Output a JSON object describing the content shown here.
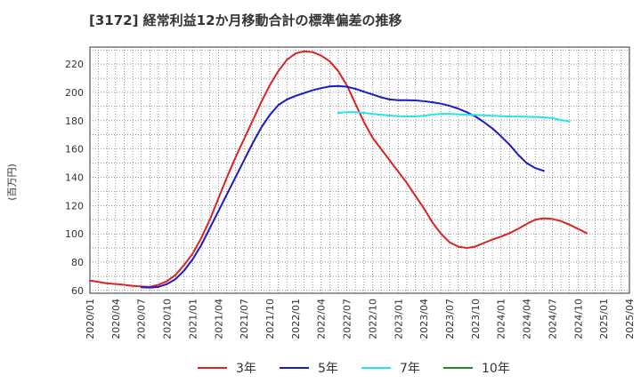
{
  "chart_data": {
    "type": "line",
    "title": "[3172]  経常利益12か月移動合計の標準偏差の推移",
    "ylabel": "(百万円)",
    "xlabel": "",
    "ylim": [
      58,
      232
    ],
    "yticks": [
      60,
      80,
      100,
      120,
      140,
      160,
      180,
      200,
      220
    ],
    "xlim": [
      "2020/01",
      "2025/04"
    ],
    "xticks": [
      "2020/01",
      "2020/04",
      "2020/07",
      "2020/10",
      "2021/01",
      "2021/04",
      "2021/07",
      "2021/10",
      "2022/01",
      "2022/04",
      "2022/07",
      "2022/10",
      "2023/01",
      "2023/04",
      "2023/07",
      "2023/10",
      "2024/01",
      "2024/04",
      "2024/07",
      "2024/10",
      "2025/01",
      "2025/04"
    ],
    "grid": true,
    "legend_position": "bottom",
    "series": [
      {
        "name": "3年",
        "color": "#dd2222",
        "points": [
          [
            "2020/01",
            67
          ],
          [
            "2020/02",
            66
          ],
          [
            "2020/03",
            65
          ],
          [
            "2020/04",
            64.5
          ],
          [
            "2020/05",
            64
          ],
          [
            "2020/06",
            63.2
          ],
          [
            "2020/07",
            62.8
          ],
          [
            "2020/08",
            62.5
          ],
          [
            "2020/09",
            64
          ],
          [
            "2020/10",
            66.5
          ],
          [
            "2020/11",
            71
          ],
          [
            "2020/12",
            78
          ],
          [
            "2021/01",
            86
          ],
          [
            "2021/02",
            97
          ],
          [
            "2021/03",
            110
          ],
          [
            "2021/04",
            125
          ],
          [
            "2021/05",
            140
          ],
          [
            "2021/06",
            154
          ],
          [
            "2021/07",
            167
          ],
          [
            "2021/08",
            180
          ],
          [
            "2021/09",
            193
          ],
          [
            "2021/10",
            205
          ],
          [
            "2021/11",
            215
          ],
          [
            "2021/12",
            223
          ],
          [
            "2022/01",
            227.5
          ],
          [
            "2022/02",
            229
          ],
          [
            "2022/03",
            228.5
          ],
          [
            "2022/04",
            226
          ],
          [
            "2022/05",
            222
          ],
          [
            "2022/06",
            215
          ],
          [
            "2022/07",
            205
          ],
          [
            "2022/08",
            192
          ],
          [
            "2022/09",
            179
          ],
          [
            "2022/10",
            168
          ],
          [
            "2022/11",
            160
          ],
          [
            "2022/12",
            152
          ],
          [
            "2023/01",
            144
          ],
          [
            "2023/02",
            136
          ],
          [
            "2023/03",
            127
          ],
          [
            "2023/04",
            118
          ],
          [
            "2023/05",
            108
          ],
          [
            "2023/06",
            100
          ],
          [
            "2023/07",
            94
          ],
          [
            "2023/08",
            91
          ],
          [
            "2023/09",
            90
          ],
          [
            "2023/10",
            91
          ],
          [
            "2023/11",
            93.5
          ],
          [
            "2023/12",
            96
          ],
          [
            "2024/01",
            98
          ],
          [
            "2024/02",
            100.5
          ],
          [
            "2024/03",
            103.5
          ],
          [
            "2024/04",
            107
          ],
          [
            "2024/05",
            110
          ],
          [
            "2024/06",
            111
          ],
          [
            "2024/07",
            110.5
          ],
          [
            "2024/08",
            109
          ],
          [
            "2024/09",
            106.5
          ],
          [
            "2024/10",
            103.5
          ],
          [
            "2024/11",
            100.5
          ]
        ]
      },
      {
        "name": "5年",
        "color": "#1a1acc",
        "points": [
          [
            "2020/07",
            62.2
          ],
          [
            "2020/08",
            62
          ],
          [
            "2020/09",
            62.5
          ],
          [
            "2020/10",
            64.5
          ],
          [
            "2020/11",
            68
          ],
          [
            "2020/12",
            74
          ],
          [
            "2021/01",
            82
          ],
          [
            "2021/02",
            92
          ],
          [
            "2021/03",
            104
          ],
          [
            "2021/04",
            116
          ],
          [
            "2021/05",
            128
          ],
          [
            "2021/06",
            140
          ],
          [
            "2021/07",
            152
          ],
          [
            "2021/08",
            164
          ],
          [
            "2021/09",
            175
          ],
          [
            "2021/10",
            184
          ],
          [
            "2021/11",
            191
          ],
          [
            "2021/12",
            195
          ],
          [
            "2022/01",
            197.5
          ],
          [
            "2022/02",
            199.5
          ],
          [
            "2022/03",
            201.5
          ],
          [
            "2022/04",
            203
          ],
          [
            "2022/05",
            204.2
          ],
          [
            "2022/06",
            204.5
          ],
          [
            "2022/07",
            204
          ],
          [
            "2022/08",
            202.5
          ],
          [
            "2022/09",
            200.5
          ],
          [
            "2022/10",
            198.5
          ],
          [
            "2022/11",
            196.5
          ],
          [
            "2022/12",
            195
          ],
          [
            "2023/01",
            194.5
          ],
          [
            "2023/02",
            194.5
          ],
          [
            "2023/03",
            194.3
          ],
          [
            "2023/04",
            193.8
          ],
          [
            "2023/05",
            193
          ],
          [
            "2023/06",
            192
          ],
          [
            "2023/07",
            190.5
          ],
          [
            "2023/08",
            188.5
          ],
          [
            "2023/09",
            186
          ],
          [
            "2023/10",
            183
          ],
          [
            "2023/11",
            179
          ],
          [
            "2023/12",
            174.5
          ],
          [
            "2024/01",
            169
          ],
          [
            "2024/02",
            163
          ],
          [
            "2024/03",
            156
          ],
          [
            "2024/04",
            150
          ],
          [
            "2024/05",
            146.5
          ],
          [
            "2024/06",
            144.5
          ]
        ]
      },
      {
        "name": "7年",
        "color": "#22e5e5",
        "points": [
          [
            "2022/06",
            185.5
          ],
          [
            "2022/07",
            186
          ],
          [
            "2022/08",
            186
          ],
          [
            "2022/09",
            185.5
          ],
          [
            "2022/10",
            184.8
          ],
          [
            "2022/11",
            184.2
          ],
          [
            "2022/12",
            183.6
          ],
          [
            "2023/01",
            183.2
          ],
          [
            "2023/02",
            183
          ],
          [
            "2023/03",
            183
          ],
          [
            "2023/04",
            183.5
          ],
          [
            "2023/05",
            184.3
          ],
          [
            "2023/06",
            184.8
          ],
          [
            "2023/07",
            184.8
          ],
          [
            "2023/08",
            184.5
          ],
          [
            "2023/09",
            184.2
          ],
          [
            "2023/10",
            184
          ],
          [
            "2023/11",
            183.8
          ],
          [
            "2023/12",
            183.5
          ],
          [
            "2024/01",
            183.2
          ],
          [
            "2024/02",
            183
          ],
          [
            "2024/03",
            182.9
          ],
          [
            "2024/04",
            182.8
          ],
          [
            "2024/05",
            182.6
          ],
          [
            "2024/06",
            182.4
          ],
          [
            "2024/07",
            181.8
          ],
          [
            "2024/08",
            180.5
          ],
          [
            "2024/09",
            179.5
          ]
        ]
      },
      {
        "name": "10年",
        "color": "#228822",
        "points": []
      }
    ]
  }
}
